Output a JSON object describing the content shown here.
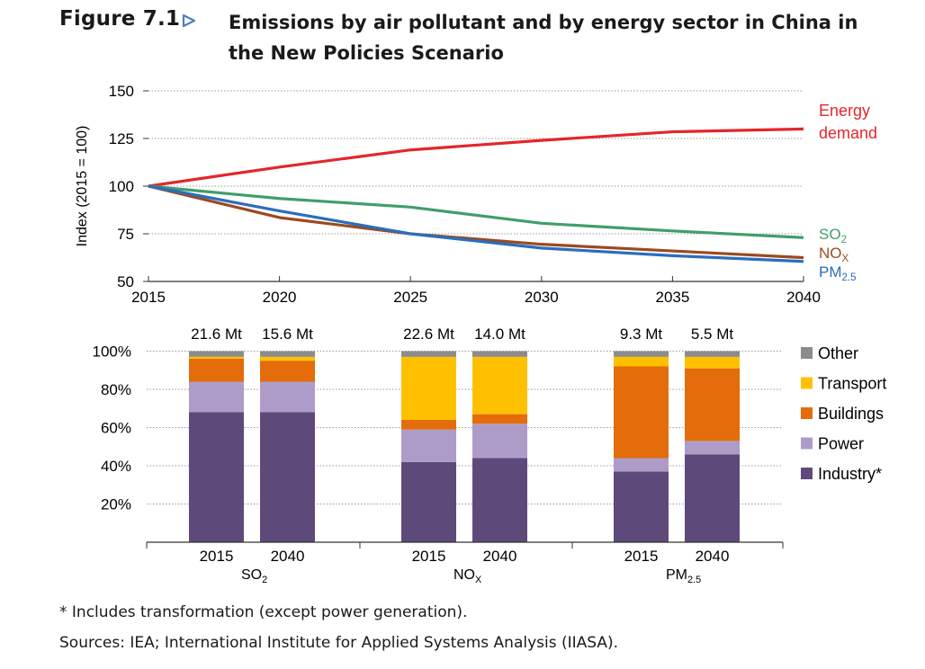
{
  "figure": {
    "label": "Figure 7.1",
    "title": "Emissions by air pollutant and by energy sector in China in the New Policies Scenario",
    "accent_color": "#4a7fc1"
  },
  "chart_data": [
    {
      "type": "line",
      "ylabel": "Index (2015 = 100)",
      "ylim": [
        50,
        150
      ],
      "yticks": [
        50,
        75,
        100,
        125,
        150
      ],
      "x": [
        2015,
        2020,
        2025,
        2030,
        2035,
        2040
      ],
      "xticks": [
        2015,
        2020,
        2025,
        2030,
        2035,
        2040
      ],
      "grid": true,
      "series": [
        {
          "name": "Energy demand",
          "label_lines": [
            "Energy",
            "demand"
          ],
          "color": "#e3262b",
          "values": [
            100,
            110,
            119,
            124,
            128.5,
            130
          ]
        },
        {
          "name": "SO2",
          "label_main": "SO",
          "label_sub": "2",
          "color": "#3f9f6a",
          "values": [
            100,
            93.5,
            89,
            80.5,
            76.5,
            73
          ]
        },
        {
          "name": "NOx",
          "label_main": "NO",
          "label_sub": "X",
          "color": "#9c4a1f",
          "values": [
            100,
            83.5,
            75,
            69.5,
            66,
            62.5
          ]
        },
        {
          "name": "PM2.5",
          "label_main": "PM",
          "label_sub": "2.5",
          "color": "#2a6ebb",
          "values": [
            100,
            87,
            75,
            67.5,
            63.5,
            60.5
          ]
        }
      ]
    },
    {
      "type": "bar",
      "stacked": true,
      "ylim": [
        0,
        100
      ],
      "yticks": [
        "20%",
        "40%",
        "60%",
        "80%",
        "100%"
      ],
      "grid": true,
      "legend_position": "right",
      "sectors": [
        {
          "name": "Industry*",
          "color": "#5d4a7b"
        },
        {
          "name": "Power",
          "color": "#ae9cc8"
        },
        {
          "name": "Buildings",
          "color": "#e46c0a"
        },
        {
          "name": "Transport",
          "color": "#ffc000"
        },
        {
          "name": "Other",
          "color": "#8c8c8c"
        }
      ],
      "groups": [
        {
          "label_main": "SO",
          "label_sub": "2",
          "bars": [
            {
              "year": "2015",
              "total": "21.6 Mt",
              "shares": [
                68,
                16,
                12,
                1,
                3
              ]
            },
            {
              "year": "2040",
              "total": "15.6 Mt",
              "shares": [
                68,
                16,
                11,
                2,
                3
              ]
            }
          ]
        },
        {
          "label_main": "NO",
          "label_sub": "X",
          "bars": [
            {
              "year": "2015",
              "total": "22.6 Mt",
              "shares": [
                42,
                17,
                5,
                33,
                3
              ]
            },
            {
              "year": "2040",
              "total": "14.0 Mt",
              "shares": [
                44,
                18,
                5,
                30,
                3
              ]
            }
          ]
        },
        {
          "label_main": "PM",
          "label_sub": "2.5",
          "bars": [
            {
              "year": "2015",
              "total": "9.3 Mt",
              "shares": [
                37,
                7,
                48,
                5,
                3
              ]
            },
            {
              "year": "2040",
              "total": "5.5 Mt",
              "shares": [
                46,
                7,
                38,
                6,
                3
              ]
            }
          ]
        }
      ]
    }
  ],
  "notes": {
    "footnote": "* Includes transformation (except power generation).",
    "sources": "Sources: IEA; International Institute for Applied Systems Analysis (IIASA)."
  }
}
